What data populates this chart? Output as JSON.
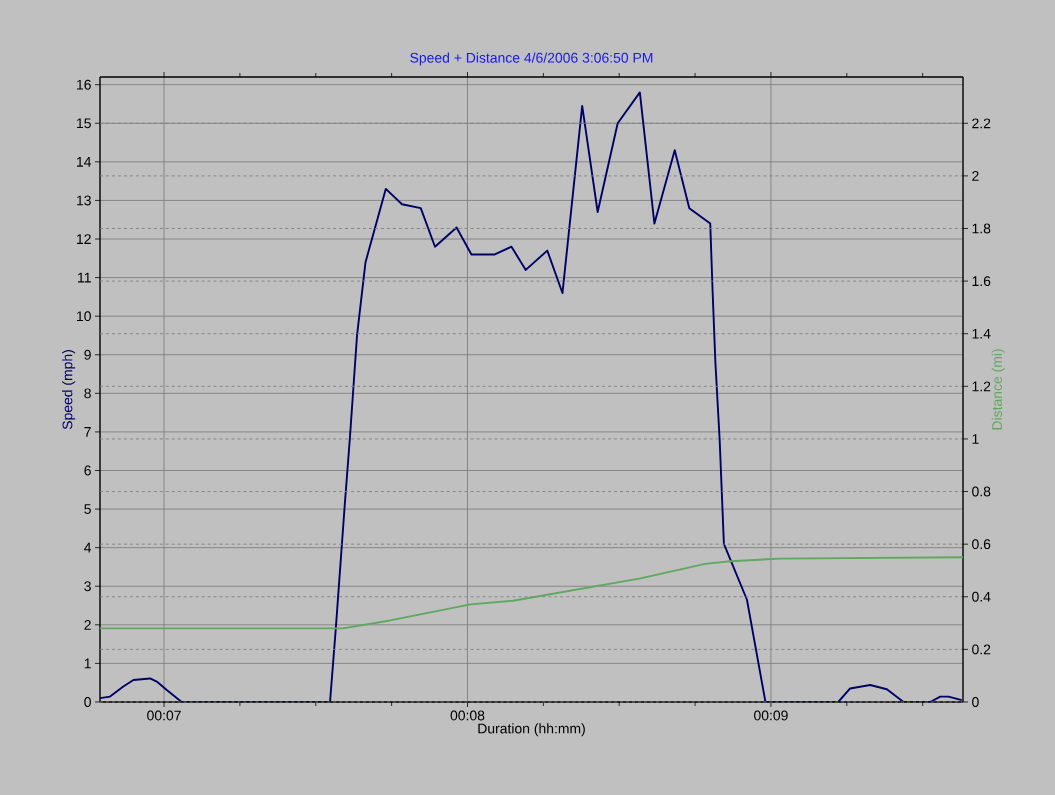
{
  "chart_data": {
    "type": "line",
    "title": "Speed + Distance 4/6/2006 3:06:50 PM",
    "xlabel": "Duration (hh:mm)",
    "ylabel": "Speed (mph)",
    "y2label": "Distance (mi)",
    "xlim": [
      6.789,
      9.633
    ],
    "xticks": [
      {
        "value": 7,
        "label": "00:07"
      },
      {
        "value": 7.25,
        "label": null
      },
      {
        "value": 7.5,
        "label": null
      },
      {
        "value": 7.75,
        "label": null
      },
      {
        "value": 8,
        "label": "00:08"
      },
      {
        "value": 8.25,
        "label": null
      },
      {
        "value": 8.5,
        "label": null
      },
      {
        "value": 8.75,
        "label": null
      },
      {
        "value": 9,
        "label": "00:09"
      },
      {
        "value": 9.25,
        "label": null
      },
      {
        "value": 9.5,
        "label": null
      }
    ],
    "ylim": [
      0,
      16.2
    ],
    "yticks": [
      0,
      1,
      2,
      3,
      4,
      5,
      6,
      7,
      8,
      9,
      10,
      11,
      12,
      13,
      14,
      15,
      16
    ],
    "y2lim": [
      0,
      2.376
    ],
    "y2ticks": [
      0,
      0.2,
      0.4,
      0.6,
      0.8,
      1,
      1.2,
      1.4,
      1.6,
      1.8,
      2,
      2.2
    ],
    "grid": true,
    "series": [
      {
        "color": "#000066",
        "x": [
          6.789,
          6.822,
          6.866,
          6.899,
          6.954,
          6.976,
          7.009,
          7.058,
          7.547,
          7.566,
          7.595,
          7.613,
          7.636,
          7.664,
          7.731,
          7.784,
          7.846,
          7.893,
          7.964,
          8.013,
          8.09,
          8.145,
          8.192,
          8.263,
          8.313,
          8.378,
          8.429,
          8.495,
          8.568,
          8.616,
          8.683,
          8.731,
          8.8,
          8.808,
          8.817,
          8.831,
          8.845,
          8.921,
          8.982,
          9.222,
          9.261,
          9.327,
          9.382,
          9.437,
          9.525,
          9.558,
          9.585,
          9.629
        ],
        "values": [
          0.1,
          0.14,
          0.4,
          0.57,
          0.61,
          0.53,
          0.31,
          0,
          0,
          1.9,
          5.05,
          6.9,
          9.5,
          11.4,
          13.3,
          12.9,
          12.8,
          11.8,
          12.3,
          11.6,
          11.6,
          11.8,
          11.2,
          11.7,
          10.6,
          15.45,
          12.7,
          15.0,
          15.8,
          12.4,
          14.3,
          12.8,
          12.4,
          10.6,
          8.8,
          6.8,
          4.1,
          2.65,
          0,
          0,
          0.35,
          0.44,
          0.33,
          0,
          0,
          0.14,
          0.14,
          0.05
        ]
      },
      {
        "color": "#5fa85f",
        "axis": "y2",
        "x": [
          6.789,
          7.59,
          7.745,
          8.01,
          8.15,
          8.57,
          8.783,
          8.866,
          9.03,
          9.633
        ],
        "values": [
          0.28,
          0.28,
          0.31,
          0.371,
          0.385,
          0.47,
          0.525,
          0.535,
          0.545,
          0.55
        ]
      }
    ]
  }
}
